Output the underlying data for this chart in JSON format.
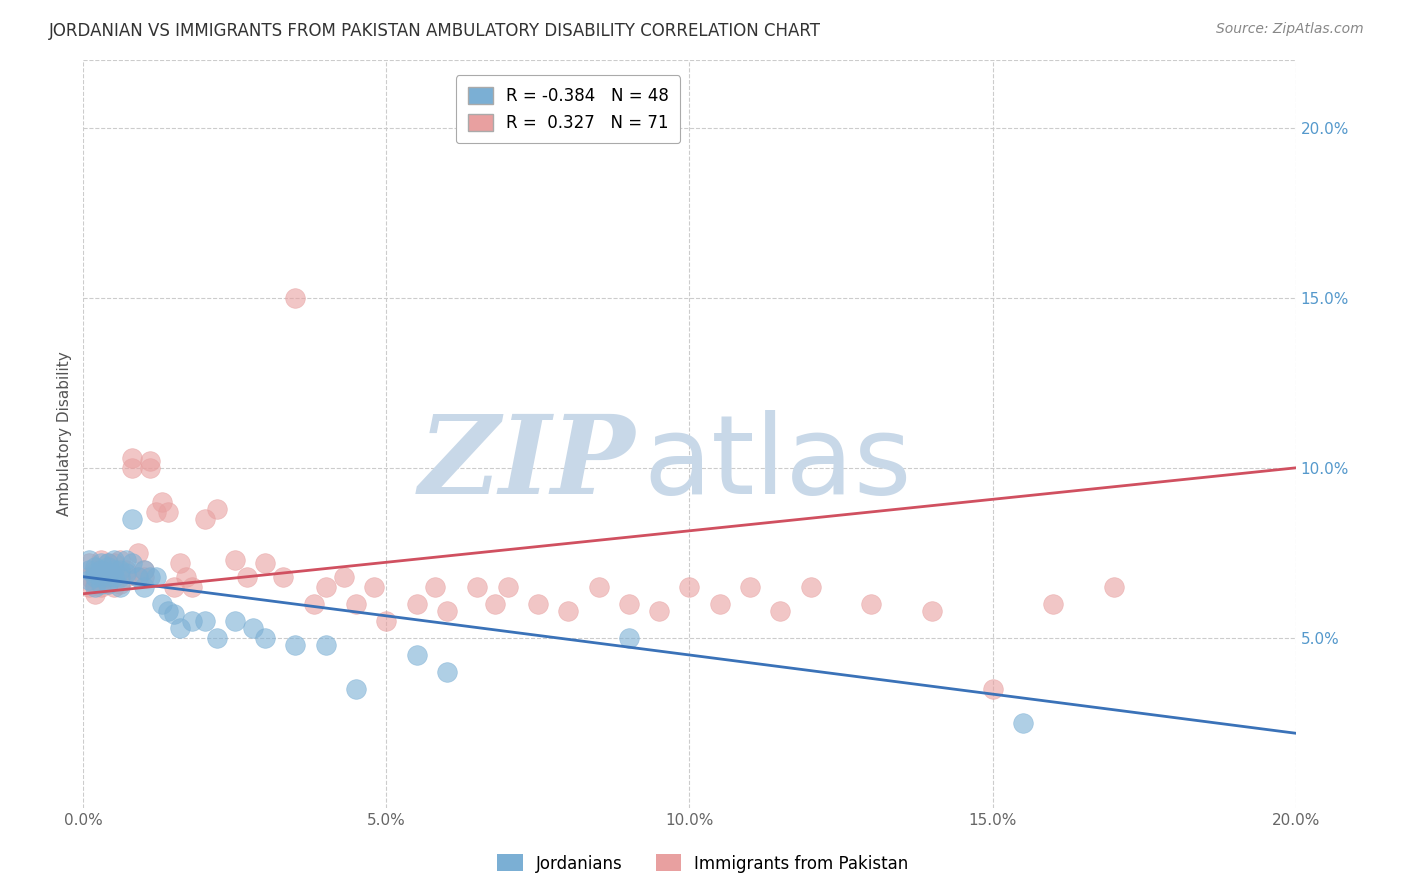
{
  "title": "JORDANIAN VS IMMIGRANTS FROM PAKISTAN AMBULATORY DISABILITY CORRELATION CHART",
  "source": "Source: ZipAtlas.com",
  "ylabel": "Ambulatory Disability",
  "x_min": 0.0,
  "x_max": 0.2,
  "y_min": 0.0,
  "y_max": 0.22,
  "jordanians_R": -0.384,
  "jordanians_N": 48,
  "pakistan_R": 0.327,
  "pakistan_N": 71,
  "jordanians_color": "#7bafd4",
  "pakistan_color": "#e8a0a0",
  "trend_jordan_color": "#3a72b8",
  "trend_pakistan_color": "#d05060",
  "watermark_zip_color": "#c8d8e8",
  "watermark_atlas_color": "#c8d8e8",
  "grid_color": "#cccccc",
  "right_tick_color": "#5599cc",
  "x_ticks": [
    0.0,
    0.05,
    0.1,
    0.15,
    0.2
  ],
  "x_tick_labels": [
    "0.0%",
    "5.0%",
    "10.0%",
    "15.0%",
    "20.0%"
  ],
  "y_ticks": [
    0.05,
    0.1,
    0.15,
    0.2
  ],
  "y_tick_labels": [
    "5.0%",
    "10.0%",
    "15.0%",
    "20.0%"
  ],
  "trend_jordan_x0": 0.0,
  "trend_jordan_y0": 0.068,
  "trend_jordan_x1": 0.2,
  "trend_jordan_y1": 0.022,
  "trend_pakistan_x0": 0.0,
  "trend_pakistan_y0": 0.063,
  "trend_pakistan_x1": 0.2,
  "trend_pakistan_y1": 0.1,
  "jordanians_x": [
    0.001,
    0.001,
    0.001,
    0.002,
    0.002,
    0.002,
    0.002,
    0.003,
    0.003,
    0.003,
    0.003,
    0.004,
    0.004,
    0.004,
    0.004,
    0.004,
    0.005,
    0.005,
    0.005,
    0.006,
    0.006,
    0.006,
    0.007,
    0.007,
    0.008,
    0.008,
    0.009,
    0.01,
    0.01,
    0.011,
    0.012,
    0.013,
    0.014,
    0.015,
    0.016,
    0.018,
    0.02,
    0.022,
    0.025,
    0.028,
    0.03,
    0.035,
    0.04,
    0.045,
    0.055,
    0.06,
    0.09,
    0.155
  ],
  "jordanians_y": [
    0.067,
    0.07,
    0.073,
    0.065,
    0.069,
    0.071,
    0.068,
    0.072,
    0.07,
    0.068,
    0.066,
    0.072,
    0.069,
    0.071,
    0.068,
    0.066,
    0.07,
    0.068,
    0.073,
    0.07,
    0.068,
    0.065,
    0.069,
    0.073,
    0.072,
    0.085,
    0.068,
    0.07,
    0.065,
    0.068,
    0.068,
    0.06,
    0.058,
    0.057,
    0.053,
    0.055,
    0.055,
    0.05,
    0.055,
    0.053,
    0.05,
    0.048,
    0.048,
    0.035,
    0.045,
    0.04,
    0.05,
    0.025
  ],
  "pakistan_x": [
    0.001,
    0.001,
    0.001,
    0.002,
    0.002,
    0.002,
    0.002,
    0.003,
    0.003,
    0.003,
    0.003,
    0.004,
    0.004,
    0.004,
    0.005,
    0.005,
    0.005,
    0.006,
    0.006,
    0.006,
    0.007,
    0.007,
    0.008,
    0.008,
    0.009,
    0.009,
    0.01,
    0.01,
    0.011,
    0.011,
    0.012,
    0.013,
    0.014,
    0.015,
    0.016,
    0.017,
    0.018,
    0.02,
    0.022,
    0.025,
    0.027,
    0.03,
    0.033,
    0.035,
    0.038,
    0.04,
    0.043,
    0.045,
    0.048,
    0.05,
    0.055,
    0.058,
    0.06,
    0.065,
    0.068,
    0.07,
    0.075,
    0.08,
    0.085,
    0.09,
    0.095,
    0.1,
    0.105,
    0.11,
    0.115,
    0.12,
    0.13,
    0.14,
    0.15,
    0.16,
    0.17
  ],
  "pakistan_y": [
    0.065,
    0.068,
    0.072,
    0.066,
    0.07,
    0.068,
    0.063,
    0.069,
    0.073,
    0.067,
    0.065,
    0.072,
    0.066,
    0.07,
    0.068,
    0.072,
    0.065,
    0.069,
    0.073,
    0.066,
    0.07,
    0.068,
    0.1,
    0.103,
    0.068,
    0.075,
    0.07,
    0.068,
    0.1,
    0.102,
    0.087,
    0.09,
    0.087,
    0.065,
    0.072,
    0.068,
    0.065,
    0.085,
    0.088,
    0.073,
    0.068,
    0.072,
    0.068,
    0.15,
    0.06,
    0.065,
    0.068,
    0.06,
    0.065,
    0.055,
    0.06,
    0.065,
    0.058,
    0.065,
    0.06,
    0.065,
    0.06,
    0.058,
    0.065,
    0.06,
    0.058,
    0.065,
    0.06,
    0.065,
    0.058,
    0.065,
    0.06,
    0.058,
    0.035,
    0.06,
    0.065
  ]
}
